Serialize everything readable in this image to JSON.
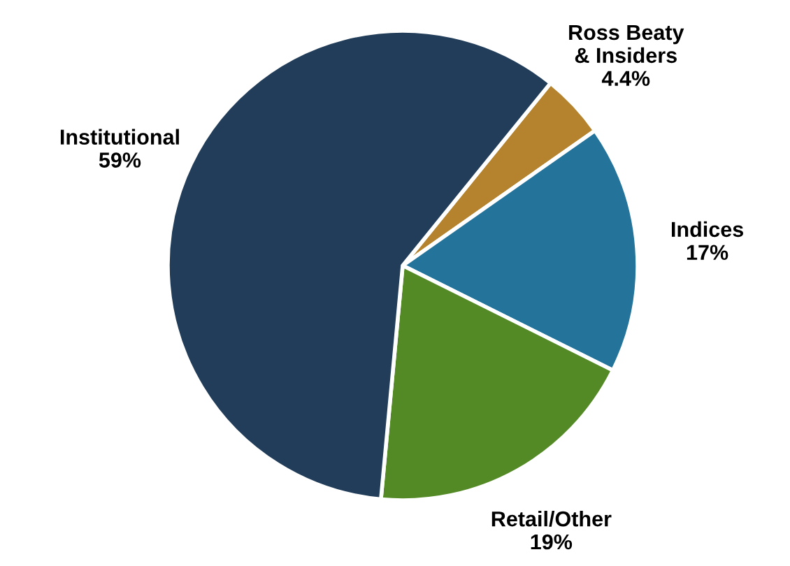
{
  "chart_data": {
    "type": "pie",
    "categories": [
      "Ross Beaty & Insiders",
      "Indices",
      "Retail/Other",
      "Institutional"
    ],
    "values": [
      4.4,
      17,
      19,
      59
    ],
    "value_labels": [
      "4.4%",
      "17%",
      "19%",
      "59%"
    ],
    "colors": [
      "#b5832e",
      "#23739a",
      "#548a26",
      "#213d5a"
    ],
    "legend": false
  }
}
